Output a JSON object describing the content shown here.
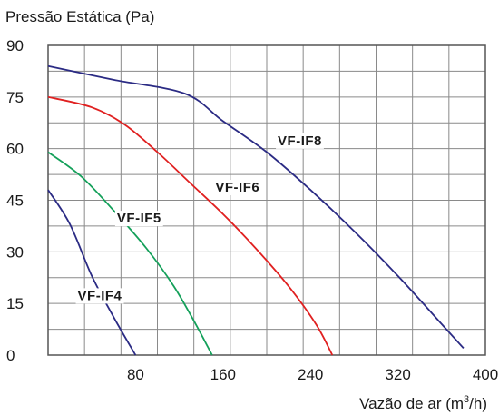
{
  "chart_data": {
    "type": "line",
    "title": "Pressão Estática (Pa)",
    "xlabel": "Vazão de ar (m",
    "xlabel_sup": "3",
    "xlabel_suffix": "/h)",
    "xlim": [
      0,
      400
    ],
    "ylim": [
      0,
      90
    ],
    "x_ticks": [
      80,
      160,
      240,
      320,
      400
    ],
    "y_ticks": [
      0,
      15,
      30,
      45,
      60,
      75,
      90
    ],
    "grid": true,
    "series": [
      {
        "name": "VF-IF4",
        "color": "#2b2b84",
        "points": [
          [
            0,
            48
          ],
          [
            20,
            38
          ],
          [
            40,
            23
          ],
          [
            60,
            11
          ],
          [
            80,
            0
          ]
        ]
      },
      {
        "name": "VF-IF5",
        "color": "#14a05a",
        "points": [
          [
            0,
            59
          ],
          [
            30,
            52
          ],
          [
            60,
            42
          ],
          [
            90,
            31
          ],
          [
            115,
            20
          ],
          [
            135,
            9
          ],
          [
            150,
            0
          ]
        ]
      },
      {
        "name": "VF-IF6",
        "color": "#e02020",
        "points": [
          [
            0,
            75
          ],
          [
            40,
            72
          ],
          [
            70,
            67
          ],
          [
            100,
            59
          ],
          [
            130,
            50
          ],
          [
            160,
            41
          ],
          [
            190,
            31
          ],
          [
            220,
            20
          ],
          [
            245,
            9
          ],
          [
            260,
            0
          ]
        ]
      },
      {
        "name": "VF-IF8",
        "color": "#2b2b84",
        "points": [
          [
            0,
            84
          ],
          [
            60,
            80
          ],
          [
            125,
            76
          ],
          [
            160,
            68
          ],
          [
            200,
            59
          ],
          [
            240,
            48
          ],
          [
            280,
            36
          ],
          [
            320,
            23
          ],
          [
            360,
            9
          ],
          [
            380,
            2
          ]
        ]
      }
    ]
  }
}
